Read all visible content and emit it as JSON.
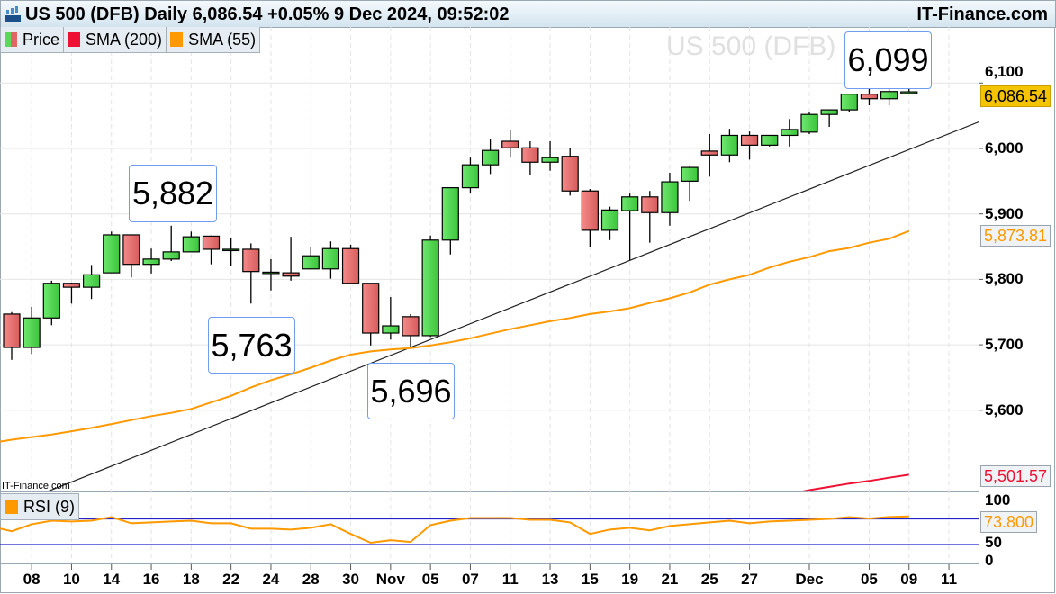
{
  "header": {
    "title": "US 500 (DFB) Daily 6,086.54 +0.05% 9 Dec 2024, 09:52:02",
    "brand": "IT-Finance.com",
    "demo_icon": "candlestick-demo-icon"
  },
  "legend": [
    {
      "label": "Price",
      "color": "#5cd65c",
      "color2": "#e06666"
    },
    {
      "label": "SMA (200)",
      "color": "#ee1133"
    },
    {
      "label": "SMA (55)",
      "color": "#ff9900"
    }
  ],
  "watermark": "US 500 (DFB)",
  "small_brand": "IT-Finance.com",
  "annotations": [
    "6,099",
    "5,882",
    "5,763",
    "5,696"
  ],
  "price_tags": {
    "last": "6,086.54",
    "sma55": "5,873.81",
    "sma200": "5,501.57",
    "rsi": "73.800"
  },
  "rsi_legend": {
    "label": "RSI (9)",
    "color": "#ff9900"
  },
  "colors": {
    "up": "#5cd65c",
    "down": "#e87070",
    "sma55": "#ff9900",
    "sma200": "#ee1133",
    "rsi": "#ff9900",
    "rsi_levels": "#2222cc",
    "last_tag": "#f5c400"
  },
  "chart_data": {
    "type": "candlestick",
    "y_ticks": [
      "6,100",
      "6,000",
      "5,900",
      "5,800",
      "5,700",
      "5,600"
    ],
    "y_tick_values": [
      6100,
      6000,
      5900,
      5800,
      5700,
      5600
    ],
    "x_labels": [
      "08",
      "10",
      "14",
      "16",
      "18",
      "22",
      "24",
      "28",
      "30",
      "Nov",
      "05",
      "07",
      "11",
      "13",
      "15",
      "19",
      "21",
      "25",
      "27",
      "Dec",
      "05",
      "09",
      "11"
    ],
    "x_label_index": [
      1,
      3,
      5,
      7,
      9,
      11,
      13,
      15,
      17,
      19,
      21,
      23,
      25,
      27,
      29,
      31,
      33,
      35,
      37,
      40,
      43,
      45,
      47
    ],
    "grid": true,
    "candles": [
      [
        "7 Oct",
        5747,
        5750,
        5677,
        5696
      ],
      [
        "8 Oct",
        5696,
        5758,
        5686,
        5741
      ],
      [
        "9 Oct",
        5741,
        5798,
        5730,
        5794
      ],
      [
        "10 Oct",
        5794,
        5795,
        5763,
        5788
      ],
      [
        "11 Oct",
        5788,
        5822,
        5770,
        5807
      ],
      [
        "14 Oct",
        5810,
        5873,
        5810,
        5868
      ],
      [
        "15 Oct",
        5868,
        5868,
        5803,
        5823
      ],
      [
        "16 Oct",
        5823,
        5847,
        5809,
        5831
      ],
      [
        "17 Oct",
        5831,
        5882,
        5828,
        5842
      ],
      [
        "18 Oct",
        5842,
        5873,
        5842,
        5865
      ],
      [
        "21 Oct",
        5866,
        5867,
        5823,
        5846
      ],
      [
        "22 Oct",
        5846,
        5864,
        5820,
        5846
      ],
      [
        "23 Oct",
        5846,
        5855,
        5763,
        5812
      ],
      [
        "24 Oct",
        5811,
        5831,
        5783,
        5811
      ],
      [
        "25 Oct",
        5810,
        5865,
        5798,
        5805
      ],
      [
        "28 Oct",
        5816,
        5849,
        5815,
        5836
      ],
      [
        "29 Oct",
        5816,
        5858,
        5801,
        5847
      ],
      [
        "30 Oct",
        5847,
        5853,
        5794,
        5794
      ],
      [
        "31 Oct",
        5794,
        5794,
        5699,
        5718
      ],
      [
        "1 Nov",
        5718,
        5773,
        5708,
        5729
      ],
      [
        "4 Nov",
        5743,
        5747,
        5696,
        5714
      ],
      [
        "5 Nov",
        5714,
        5867,
        5712,
        5860
      ],
      [
        "6 Nov",
        5860,
        5940,
        5838,
        5940
      ],
      [
        "7 Nov",
        5940,
        5986,
        5931,
        5975
      ],
      [
        "8 Nov",
        5975,
        6015,
        5961,
        5997
      ],
      [
        "11 Nov",
        6011,
        6028,
        5986,
        6001
      ],
      [
        "12 Nov",
        6001,
        6011,
        5960,
        5979
      ],
      [
        "13 Nov",
        5979,
        6011,
        5966,
        5986
      ],
      [
        "14 Nov",
        5988,
        6000,
        5928,
        5935
      ],
      [
        "15 Nov",
        5935,
        5938,
        5850,
        5875
      ],
      [
        "18 Nov",
        5875,
        5911,
        5860,
        5906
      ],
      [
        "19 Nov",
        5905,
        5931,
        5829,
        5926
      ],
      [
        "20 Nov",
        5926,
        5935,
        5856,
        5902
      ],
      [
        "21 Nov",
        5902,
        5963,
        5882,
        5949
      ],
      [
        "22 Nov",
        5950,
        5974,
        5920,
        5971
      ],
      [
        "25 Nov",
        5996,
        6022,
        5957,
        5990
      ],
      [
        "26 Nov",
        5990,
        6030,
        5979,
        6020
      ],
      [
        "27 Nov",
        6020,
        6026,
        5983,
        6005
      ],
      [
        "28 Nov",
        6005,
        6020,
        6003,
        6020
      ],
      [
        "29 Nov",
        6020,
        6045,
        6003,
        6029
      ],
      [
        "2 Dec",
        6025,
        6055,
        6022,
        6052
      ],
      [
        "3 Dec",
        6052,
        6059,
        6033,
        6059
      ],
      [
        "4 Dec",
        6059,
        6083,
        6055,
        6083
      ],
      [
        "5 Dec",
        6083,
        6096,
        6066,
        6076
      ],
      [
        "6 Dec",
        6076,
        6099,
        6066,
        6087
      ],
      [
        "9 Dec",
        6084,
        6099,
        6084,
        6086.54
      ]
    ],
    "sma55": [
      5555,
      5559,
      5563,
      5568,
      5573,
      5579,
      5585,
      5591,
      5596,
      5602,
      5612,
      5622,
      5635,
      5646,
      5655,
      5665,
      5676,
      5685,
      5690,
      5693,
      5695,
      5699,
      5704,
      5710,
      5717,
      5724,
      5730,
      5736,
      5741,
      5747,
      5751,
      5756,
      5764,
      5771,
      5780,
      5792,
      5800,
      5807,
      5818,
      5827,
      5834,
      5843,
      5848,
      5856,
      5862,
      5873.81
    ],
    "sma200": [
      null,
      null,
      null,
      null,
      null,
      null,
      null,
      null,
      null,
      null,
      null,
      null,
      null,
      null,
      null,
      null,
      null,
      null,
      null,
      null,
      null,
      null,
      null,
      null,
      null,
      null,
      null,
      null,
      null,
      null,
      null,
      null,
      null,
      null,
      null,
      null,
      null,
      null,
      null,
      5472,
      5478,
      5483,
      5488,
      5492,
      5497,
      5501.57
    ],
    "trendline": [
      {
        "date": "4 Nov",
        "price": 5696
      },
      {
        "date": "19 Nov",
        "price": 5829
      }
    ],
    "rsi": {
      "name": "RSI (9)",
      "y_ticks": [
        "100",
        "50",
        "0"
      ],
      "levels": [
        70,
        30
      ],
      "values": [
        50.7,
        61.7,
        67.2,
        65.9,
        67.2,
        72.8,
        63.1,
        64.5,
        65.9,
        67.2,
        63.1,
        63.1,
        54.8,
        54.8,
        53.4,
        56.2,
        61.7,
        46.6,
        32.8,
        36.9,
        34.1,
        60.3,
        67.2,
        71.4,
        71.4,
        71.4,
        68.6,
        68.6,
        64.5,
        46.6,
        53.4,
        56.2,
        52.1,
        59.0,
        61.7,
        64.5,
        67.2,
        63.1,
        65.9,
        67.2,
        68.6,
        70,
        72.8,
        70.5,
        73,
        73.8
      ]
    }
  }
}
